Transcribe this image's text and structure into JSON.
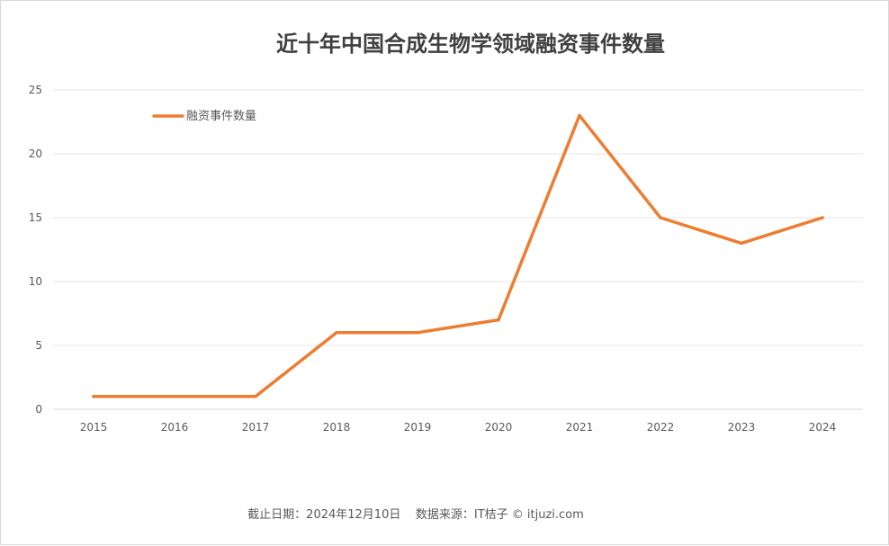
{
  "chart_data": {
    "type": "line",
    "title": "近十年中国合成生物学领域融资事件数量",
    "categories": [
      "2015",
      "2016",
      "2017",
      "2018",
      "2019",
      "2020",
      "2021",
      "2022",
      "2023",
      "2024"
    ],
    "series": [
      {
        "name": "融资事件数量",
        "values": [
          1,
          1,
          1,
          6,
          6,
          7,
          23,
          15,
          13,
          15
        ]
      }
    ],
    "yticks": [
      "0",
      "5",
      "10",
      "15",
      "20",
      "25"
    ],
    "ylim": [
      0,
      25
    ],
    "grid": true,
    "legend_position": "top-left",
    "colors": {
      "series": "#ed7d31",
      "grid": "#e6e6e6",
      "axis": "#d9d9d9"
    }
  },
  "footer": {
    "note": "截止日期：2024年12月10日    数据来源：IT桔子 © itjuzi.com"
  }
}
